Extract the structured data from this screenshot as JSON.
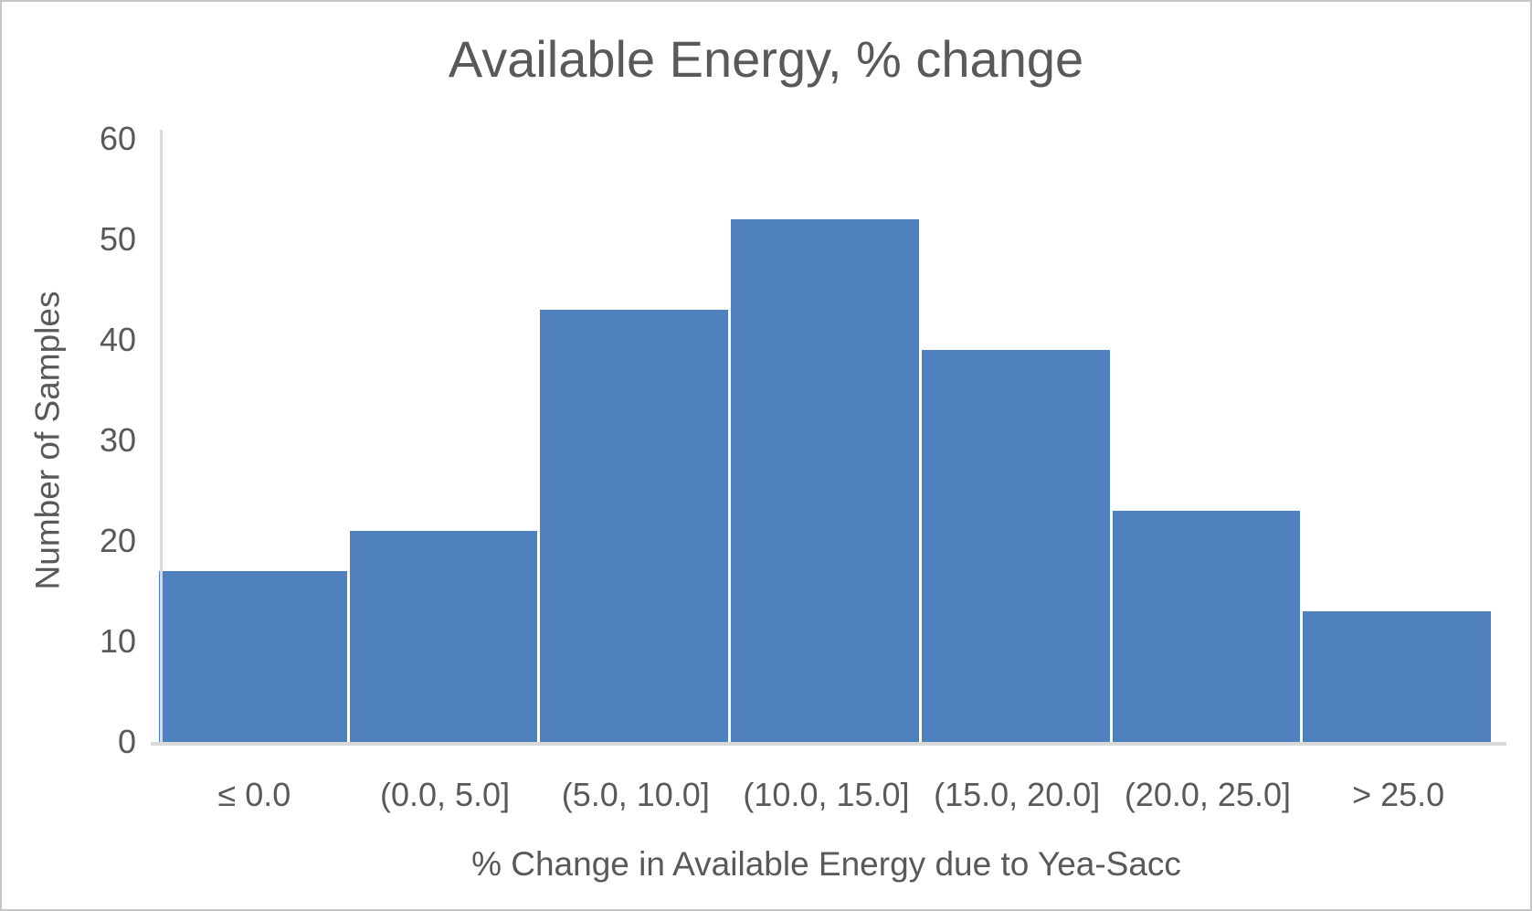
{
  "window": {
    "background": "#FFFFFF",
    "border_color": "#C6C6C6"
  },
  "chart_data": {
    "type": "bar",
    "title": "Available Energy, % change",
    "xlabel": "% Change in Available Energy due to Yea-Sacc",
    "ylabel": "Number of Samples",
    "categories": [
      "≤ 0.0",
      "(0.0, 5.0]",
      "(5.0, 10.0]",
      "(10.0, 15.0]",
      "(15.0, 20.0]",
      "(20.0, 25.0]",
      "> 25.0"
    ],
    "values": [
      17,
      21,
      43,
      52,
      39,
      23,
      13
    ],
    "ylim": [
      0,
      60
    ],
    "yticks": [
      0,
      10,
      20,
      30,
      40,
      50,
      60
    ],
    "grid": false,
    "legend": false,
    "colors": {
      "bar": "#4E81BD",
      "text": "#595959",
      "axis_line": "#D9D9D9"
    }
  }
}
